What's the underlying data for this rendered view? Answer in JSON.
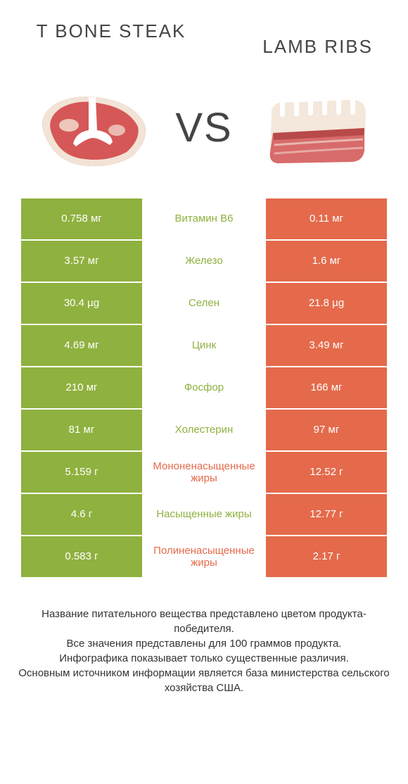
{
  "colors": {
    "green": "#8fb13f",
    "orange": "#e46a4b",
    "title": "#444444",
    "footer": "#333333"
  },
  "header": {
    "left_title": "T BONE STEAK",
    "right_title": "LAMB RIBS",
    "vs_label": "VS"
  },
  "comparison": {
    "left_color": "#8fb13f",
    "right_color": "#e46a4b",
    "rows": [
      {
        "left": "0.758 мг",
        "label": "Витамин B6",
        "right": "0.11 мг",
        "winner": "left"
      },
      {
        "left": "3.57 мг",
        "label": "Железо",
        "right": "1.6 мг",
        "winner": "left"
      },
      {
        "left": "30.4 µg",
        "label": "Селен",
        "right": "21.8 µg",
        "winner": "left"
      },
      {
        "left": "4.69 мг",
        "label": "Цинк",
        "right": "3.49 мг",
        "winner": "left"
      },
      {
        "left": "210 мг",
        "label": "Фосфор",
        "right": "166 мг",
        "winner": "left"
      },
      {
        "left": "81 мг",
        "label": "Холестерин",
        "right": "97 мг",
        "winner": "left"
      },
      {
        "left": "5.159 г",
        "label": "Мононенасыщенные жиры",
        "right": "12.52 г",
        "winner": "right"
      },
      {
        "left": "4.6 г",
        "label": "Насыщенные жиры",
        "right": "12.77 г",
        "winner": "left"
      },
      {
        "left": "0.583 г",
        "label": "Полиненасыщенные жиры",
        "right": "2.17 г",
        "winner": "right"
      }
    ]
  },
  "footer": {
    "line1": "Название питательного вещества представлено цветом продукта-победителя.",
    "line2": "Все значения представлены для 100 граммов продукта.",
    "line3": "Инфографика показывает только существенные различия.",
    "line4": "Основным источником информации является база министерства сельского хозяйства США."
  },
  "illustrations": {
    "steak": {
      "main_fill": "#c43a3a",
      "light_fill": "#d65757",
      "fat_fill": "#f2e3d6",
      "bone_fill": "#ffffff"
    },
    "ribs": {
      "main_fill": "#d86b6b",
      "fat_fill": "#f4e7db",
      "meat_dark": "#b84a4a",
      "bone_fill": "#ffffff"
    }
  }
}
